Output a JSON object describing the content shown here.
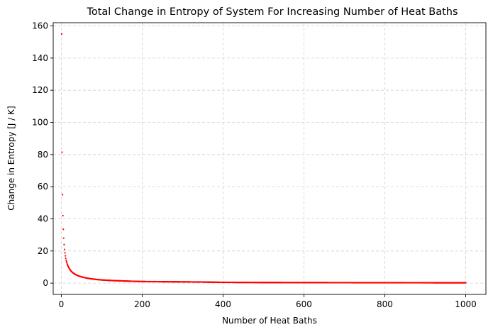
{
  "chart_data": {
    "type": "scatter",
    "title": "Total Change in Entropy of System For Increasing Number of Heat Baths",
    "xlabel": "Number of Heat Baths",
    "ylabel": "Change in Entropy [J / K]",
    "xlim": [
      -20,
      1050
    ],
    "ylim": [
      -7,
      162
    ],
    "xticks": [
      0,
      200,
      400,
      600,
      800,
      1000
    ],
    "yticks": [
      0,
      20,
      40,
      60,
      80,
      100,
      120,
      140,
      160
    ],
    "grid": true,
    "legend": "none",
    "marker_color": "#ff0000",
    "series": [
      {
        "n_start": 1,
        "n_end": 1000,
        "x": [
          1,
          2,
          3,
          4,
          5,
          6,
          7,
          8,
          9,
          10,
          12,
          14,
          16,
          18,
          20,
          25,
          30,
          40,
          50,
          60,
          80,
          100,
          120,
          150,
          200,
          250,
          300,
          350,
          400,
          500,
          600,
          700,
          800,
          900,
          1000
        ],
        "y": [
          155,
          81.5,
          55,
          42,
          33.5,
          28,
          24,
          21,
          18.8,
          17,
          14.3,
          12.5,
          11,
          9.9,
          9,
          7.3,
          6.2,
          4.8,
          3.9,
          3.3,
          2.5,
          2.0,
          1.7,
          1.4,
          1.0,
          0.9,
          0.8,
          0.7,
          0.5,
          0.4,
          0.35,
          0.3,
          0.28,
          0.25,
          0.22
        ]
      }
    ]
  }
}
